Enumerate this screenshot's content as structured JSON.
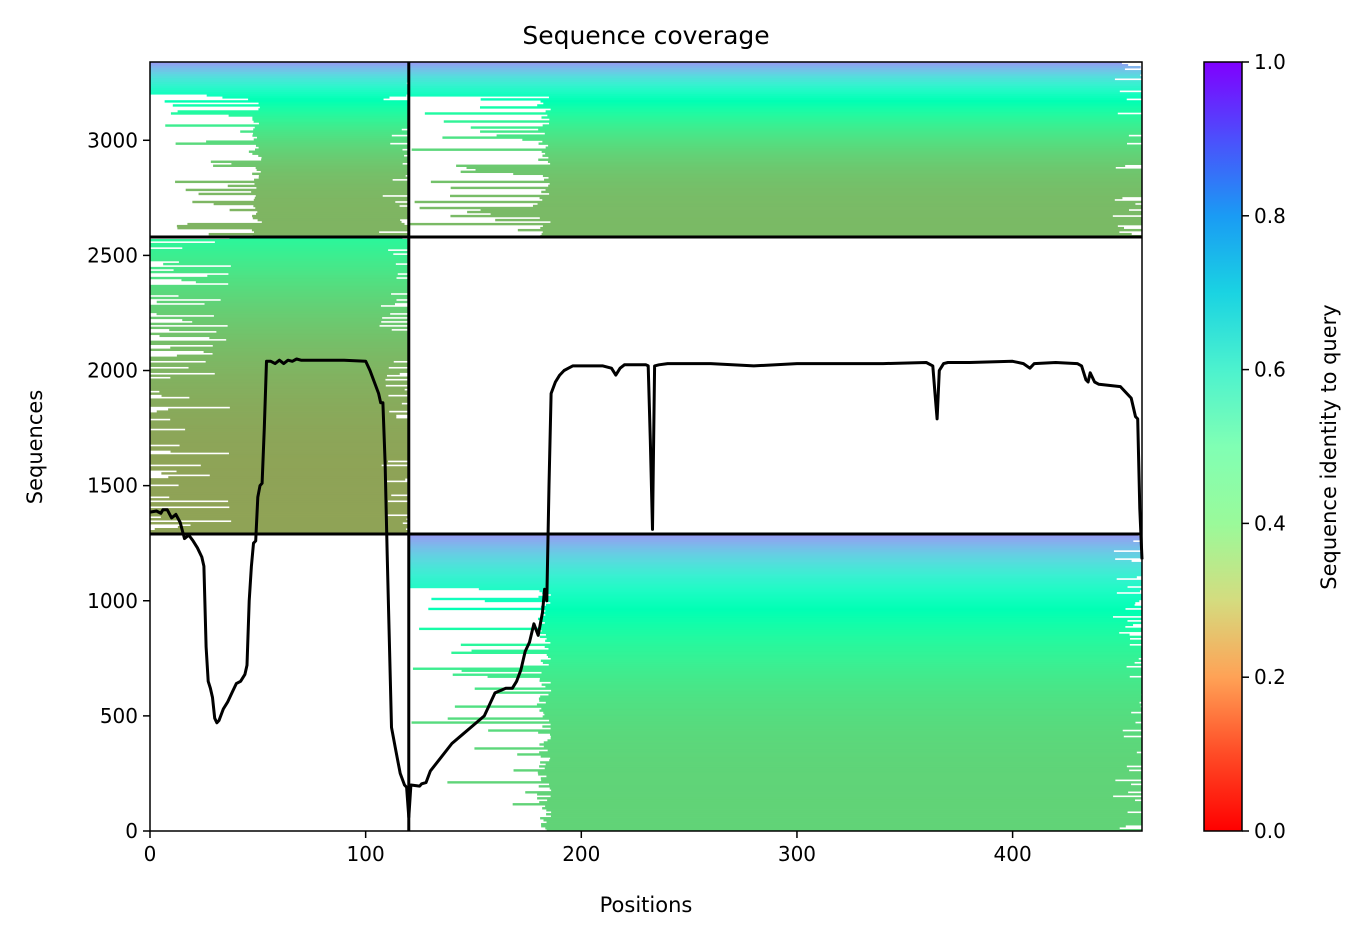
{
  "chart_data": {
    "type": "heatmap",
    "title": "Sequence coverage",
    "xlabel": "Positions",
    "ylabel": "Sequences",
    "xlim": [
      0,
      460
    ],
    "ylim": [
      0,
      3340
    ],
    "x_ticks": [
      0,
      100,
      200,
      300,
      400
    ],
    "y_ticks": [
      0,
      500,
      1000,
      1500,
      2000,
      2500,
      3000
    ],
    "colorbar": {
      "label": "Sequence identity to query",
      "range": [
        0,
        1
      ],
      "ticks": [
        "0.0",
        "0.2",
        "0.4",
        "0.6",
        "0.8",
        "1.0"
      ],
      "colormap": "rainbow_r"
    },
    "block_boundaries": {
      "x": [
        120
      ],
      "y": [
        1290,
        2580
      ]
    },
    "blocks": [
      {
        "x0": 0,
        "x1": 120,
        "y0": 1290,
        "y1": 2580,
        "identity_bottom": 0.22,
        "identity_top": 0.42,
        "coverage_start": 0
      },
      {
        "x0": 0,
        "x1": 120,
        "y0": 2580,
        "y1": 3340,
        "identity_bottom": 0.25,
        "identity_top": 0.8,
        "coverage_start": 52
      },
      {
        "x0": 120,
        "x1": 460,
        "y0": 0,
        "y1": 1290,
        "identity_bottom": 0.31,
        "identity_top": 0.8,
        "coverage_start": 186
      },
      {
        "x0": 120,
        "x1": 460,
        "y0": 2580,
        "y1": 3340,
        "identity_bottom": 0.26,
        "identity_top": 0.8,
        "coverage_start": 186
      }
    ],
    "coverage_line": {
      "x": [
        0,
        3,
        5,
        6,
        8,
        10,
        12,
        14,
        16,
        18,
        20,
        22,
        24,
        25,
        26,
        27,
        28,
        29,
        30,
        31,
        32,
        34,
        36,
        38,
        40,
        42,
        44,
        45,
        46,
        47,
        48,
        49,
        50,
        51,
        52,
        53,
        54,
        56,
        58,
        60,
        62,
        64,
        66,
        68,
        70,
        80,
        90,
        100,
        102,
        104,
        106,
        107,
        108,
        109,
        110,
        112,
        114,
        116,
        118,
        119,
        120,
        121,
        125,
        126,
        128,
        130,
        135,
        140,
        145,
        150,
        155,
        160,
        165,
        168,
        170,
        172,
        174,
        176,
        178,
        180,
        182,
        183,
        184,
        185,
        186,
        188,
        190,
        192,
        194,
        196,
        200,
        210,
        214,
        216,
        218,
        220,
        230,
        231,
        232,
        233,
        234,
        236,
        240,
        260,
        270,
        280,
        300,
        320,
        340,
        360,
        363,
        364,
        365,
        366,
        368,
        370,
        380,
        400,
        405,
        408,
        410,
        420,
        430,
        432,
        434,
        435,
        436,
        438,
        440,
        450,
        455,
        457,
        458,
        459,
        460
      ],
      "y": [
        1385,
        1390,
        1380,
        1395,
        1395,
        1360,
        1375,
        1340,
        1270,
        1285,
        1260,
        1230,
        1190,
        1150,
        800,
        650,
        620,
        580,
        490,
        470,
        480,
        530,
        560,
        600,
        640,
        650,
        680,
        720,
        1000,
        1150,
        1250,
        1260,
        1450,
        1500,
        1510,
        1750,
        2040,
        2040,
        2030,
        2045,
        2030,
        2045,
        2040,
        2050,
        2045,
        2045,
        2045,
        2040,
        2000,
        1950,
        1900,
        1860,
        1860,
        1600,
        1200,
        450,
        350,
        250,
        200,
        190,
        60,
        200,
        195,
        205,
        210,
        260,
        320,
        380,
        420,
        460,
        500,
        600,
        620,
        620,
        650,
        700,
        780,
        820,
        900,
        850,
        950,
        1050,
        1000,
        1500,
        1900,
        1950,
        1980,
        2000,
        2010,
        2020,
        2020,
        2020,
        2010,
        1980,
        2010,
        2025,
        2025,
        2020,
        1700,
        1310,
        2020,
        2025,
        2030,
        2030,
        2025,
        2020,
        2030,
        2030,
        2030,
        2035,
        2020,
        1900,
        1790,
        2000,
        2030,
        2035,
        2035,
        2040,
        2030,
        2010,
        2030,
        2035,
        2030,
        2020,
        1960,
        1950,
        1990,
        1950,
        1940,
        1930,
        1880,
        1800,
        1790,
        1400,
        1180
      ]
    }
  }
}
